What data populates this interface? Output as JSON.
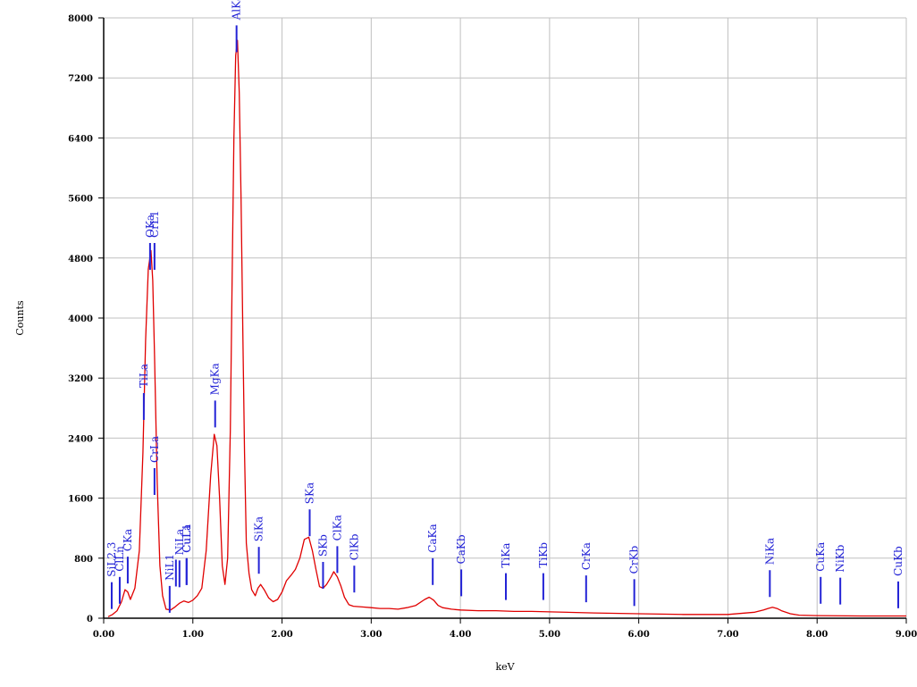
{
  "chart_data": {
    "type": "line",
    "xlabel": "keV",
    "ylabel": "Counts",
    "xlim": [
      0,
      9
    ],
    "ylim": [
      0,
      8000
    ],
    "xticks": [
      "0.00",
      "1.00",
      "2.00",
      "3.00",
      "4.00",
      "5.00",
      "6.00",
      "7.00",
      "8.00",
      "9.00"
    ],
    "yticks": [
      "0",
      "800",
      "1600",
      "2400",
      "3200",
      "4000",
      "4800",
      "5600",
      "6400",
      "7200",
      "8000"
    ],
    "grid": true,
    "colors": {
      "spectrum": "#e00000",
      "markers": "#2323d6",
      "grid": "#c0c0c0",
      "axis": "#000000"
    },
    "series": [
      {
        "x": [
          0.05,
          0.1,
          0.15,
          0.2,
          0.24,
          0.27,
          0.3,
          0.35,
          0.4,
          0.44,
          0.47,
          0.5,
          0.53,
          0.55,
          0.57,
          0.6,
          0.63,
          0.66,
          0.7,
          0.75,
          0.8,
          0.85,
          0.9,
          0.95,
          1.0,
          1.05,
          1.1,
          1.15,
          1.2,
          1.24,
          1.27,
          1.3,
          1.33,
          1.36,
          1.39,
          1.42,
          1.44,
          1.46,
          1.48,
          1.5,
          1.52,
          1.54,
          1.56,
          1.58,
          1.6,
          1.63,
          1.66,
          1.7,
          1.73,
          1.76,
          1.8,
          1.85,
          1.9,
          1.95,
          2.0,
          2.05,
          2.1,
          2.15,
          2.2,
          2.25,
          2.3,
          2.34,
          2.38,
          2.42,
          2.46,
          2.5,
          2.55,
          2.58,
          2.62,
          2.66,
          2.7,
          2.75,
          2.8,
          2.9,
          3.0,
          3.1,
          3.2,
          3.3,
          3.4,
          3.5,
          3.6,
          3.65,
          3.7,
          3.75,
          3.8,
          3.9,
          4.0,
          4.2,
          4.4,
          4.6,
          4.8,
          5.0,
          5.5,
          6.0,
          6.5,
          7.0,
          7.3,
          7.4,
          7.45,
          7.5,
          7.55,
          7.6,
          7.7,
          7.8,
          8.0,
          8.5,
          9.0
        ],
        "y": [
          20,
          50,
          100,
          220,
          380,
          350,
          250,
          400,
          900,
          2200,
          3700,
          4650,
          4900,
          4500,
          3500,
          1800,
          700,
          300,
          120,
          110,
          150,
          200,
          230,
          210,
          240,
          300,
          400,
          900,
          1900,
          2450,
          2300,
          1600,
          700,
          450,
          800,
          2500,
          4500,
          6400,
          7500,
          7700,
          7000,
          5600,
          3800,
          2200,
          1000,
          600,
          380,
          300,
          400,
          450,
          380,
          270,
          220,
          250,
          350,
          500,
          570,
          650,
          800,
          1050,
          1080,
          900,
          650,
          420,
          400,
          450,
          550,
          620,
          550,
          430,
          280,
          180,
          160,
          150,
          140,
          130,
          130,
          120,
          140,
          170,
          250,
          280,
          240,
          170,
          140,
          120,
          110,
          100,
          100,
          90,
          90,
          85,
          70,
          60,
          50,
          50,
          80,
          110,
          130,
          145,
          130,
          100,
          60,
          40,
          35,
          30,
          30
        ]
      }
    ],
    "markers": [
      {
        "x": 0.09,
        "top": 480,
        "label": "SiL2,3"
      },
      {
        "x": 0.18,
        "top": 550,
        "label": "ClLn"
      },
      {
        "x": 0.27,
        "top": 820,
        "label": "CKa"
      },
      {
        "x": 0.45,
        "top": 3000,
        "label": "TiLa"
      },
      {
        "x": 0.52,
        "top": 5000,
        "label": "OKa"
      },
      {
        "x": 0.57,
        "top": 5000,
        "label": "CrL1"
      },
      {
        "x": 0.57,
        "top": 2000,
        "label": "CrLa"
      },
      {
        "x": 0.74,
        "top": 430,
        "label": "NiL1"
      },
      {
        "x": 0.85,
        "top": 770,
        "label": "NiLa"
      },
      {
        "x": 0.81,
        "top": 780,
        "label": ""
      },
      {
        "x": 0.93,
        "top": 800,
        "label": "CuL1"
      },
      {
        "x": 0.93,
        "top": 800,
        "label": "CuLa"
      },
      {
        "x": 1.25,
        "top": 2900,
        "label": "MgKa"
      },
      {
        "x": 1.49,
        "top": 7900,
        "label": "AlKa"
      },
      {
        "x": 1.74,
        "top": 950,
        "label": "SiKa"
      },
      {
        "x": 2.31,
        "top": 1450,
        "label": "SKa"
      },
      {
        "x": 2.46,
        "top": 750,
        "label": "SKb"
      },
      {
        "x": 2.62,
        "top": 960,
        "label": "ClKa"
      },
      {
        "x": 2.81,
        "top": 700,
        "label": "ClKb"
      },
      {
        "x": 3.69,
        "top": 800,
        "label": "CaKa"
      },
      {
        "x": 4.01,
        "top": 650,
        "label": "CaKb"
      },
      {
        "x": 4.51,
        "top": 600,
        "label": "TiKa"
      },
      {
        "x": 4.93,
        "top": 600,
        "label": "TiKb"
      },
      {
        "x": 5.41,
        "top": 570,
        "label": "CrKa"
      },
      {
        "x": 5.95,
        "top": 520,
        "label": "CrKb"
      },
      {
        "x": 7.47,
        "top": 640,
        "label": "NiKa"
      },
      {
        "x": 8.04,
        "top": 550,
        "label": "CuKa"
      },
      {
        "x": 8.26,
        "top": 540,
        "label": "NiKb"
      },
      {
        "x": 8.91,
        "top": 490,
        "label": "CuKb"
      }
    ]
  }
}
